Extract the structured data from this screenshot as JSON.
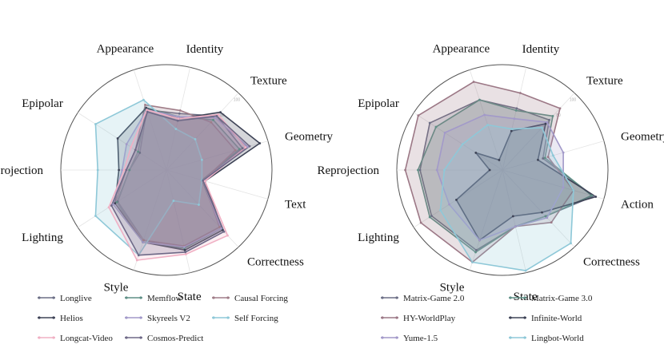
{
  "chart_data": [
    {
      "type": "radar",
      "axes": [
        "Appearance",
        "Identity",
        "Texture",
        "Geometry",
        "Text",
        "Correctness",
        "State",
        "Style",
        "Lighting",
        "Reprojection",
        "Epipolar"
      ],
      "ticks": [
        80,
        100
      ],
      "range": [
        0,
        100
      ],
      "grid": "spokes",
      "legend_position": "bottom",
      "series": [
        {
          "name": "Longlive",
          "color": "#6c6f86",
          "values": [
            60,
            55,
            70,
            75,
            35,
            78,
            78,
            70,
            55,
            35,
            30
          ]
        },
        {
          "name": "Memflow",
          "color": "#5f8f86",
          "values": [
            62,
            52,
            65,
            72,
            35,
            76,
            76,
            72,
            56,
            35,
            32
          ]
        },
        {
          "name": "Causal Forcing",
          "color": "#a07d88",
          "values": [
            65,
            58,
            62,
            68,
            36,
            74,
            74,
            70,
            58,
            38,
            35
          ]
        },
        {
          "name": "Helios",
          "color": "#3e4356",
          "values": [
            62,
            50,
            75,
            92,
            38,
            78,
            78,
            72,
            58,
            45,
            55
          ]
        },
        {
          "name": "Skyreels V2",
          "color": "#a299c9",
          "values": [
            60,
            52,
            68,
            80,
            36,
            76,
            75,
            72,
            60,
            42,
            45
          ]
        },
        {
          "name": "Self Forcing",
          "color": "#8ec8d8",
          "values": [
            70,
            40,
            40,
            35,
            35,
            45,
            30,
            85,
            80,
            65,
            80
          ]
        },
        {
          "name": "Longcat-Video",
          "color": "#f0b0c4",
          "values": [
            60,
            50,
            72,
            78,
            38,
            85,
            82,
            90,
            65,
            40,
            40
          ]
        },
        {
          "name": "Cosmos-Predict",
          "color": "#6e6987",
          "values": [
            58,
            48,
            70,
            82,
            36,
            80,
            80,
            85,
            62,
            38,
            35
          ]
        }
      ]
    },
    {
      "type": "radar",
      "axes": [
        "Appearance",
        "Identity",
        "Texture",
        "Geometry",
        "Action",
        "Correctness",
        "State",
        "Style",
        "Lighting",
        "Reprojection",
        "Epipolar"
      ],
      "ticks": [
        80,
        100
      ],
      "range": [
        0,
        100
      ],
      "grid": "spokes",
      "legend_position": "bottom",
      "series": [
        {
          "name": "Matrix-Game 2.0",
          "color": "#6c6f86",
          "values": [
            70,
            60,
            65,
            40,
            90,
            60,
            55,
            80,
            80,
            78,
            82
          ]
        },
        {
          "name": "Matrix-Game 3.0",
          "color": "#5f8f86",
          "values": [
            70,
            58,
            70,
            42,
            88,
            60,
            55,
            82,
            82,
            80,
            75
          ]
        },
        {
          "name": "HY-WorldPlay",
          "color": "#9c7886",
          "values": [
            88,
            75,
            80,
            45,
            70,
            68,
            55,
            92,
            92,
            92,
            95
          ]
        },
        {
          "name": "Infinite-World",
          "color": "#3e4356",
          "values": [
            10,
            38,
            60,
            35,
            92,
            55,
            45,
            70,
            52,
            12,
            30
          ]
        },
        {
          "name": "Yume-1.5",
          "color": "#a299c9",
          "values": [
            55,
            50,
            62,
            60,
            60,
            62,
            55,
            70,
            60,
            62,
            65
          ]
        },
        {
          "name": "Lingbot-World",
          "color": "#8ec8d8",
          "values": [
            45,
            40,
            55,
            50,
            70,
            95,
            98,
            92,
            70,
            55,
            45
          ]
        }
      ]
    }
  ]
}
